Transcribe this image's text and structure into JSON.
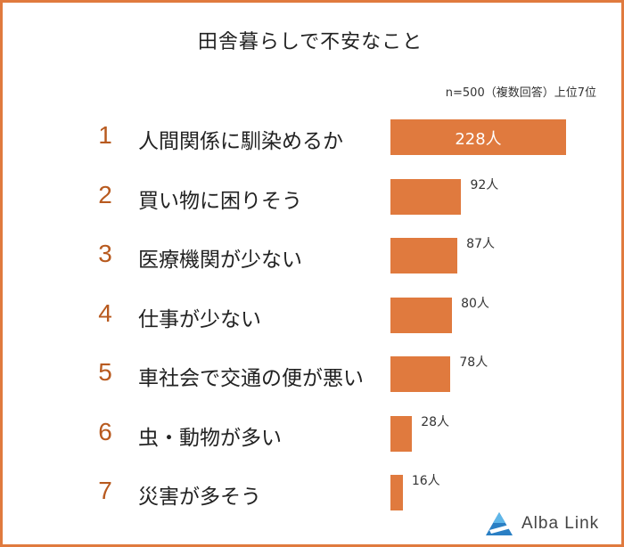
{
  "chart_data": {
    "type": "bar",
    "orientation": "horizontal",
    "title": "田舎暮らしで不安なこと",
    "subtitle": "n=500（複数回答）上位7位",
    "categories": [
      "人間関係に馴染めるか",
      "買い物に困りそう",
      "医療機関が少ない",
      "仕事が少ない",
      "車社会で交通の便が悪い",
      "虫・動物が多い",
      "災害が多そう"
    ],
    "ranks": [
      "1",
      "2",
      "3",
      "4",
      "5",
      "6",
      "7"
    ],
    "values": [
      228,
      92,
      87,
      80,
      78,
      28,
      16
    ],
    "value_labels": [
      "228人",
      "92人",
      "87人",
      "80人",
      "78人",
      "28人",
      "16人"
    ],
    "bar_color": "#e07a3e",
    "rank_color": "#b85a1f",
    "frame_color": "#e07a3e"
  },
  "logo": {
    "text": "Alba Link",
    "icon": "alba-link-logo-icon"
  }
}
